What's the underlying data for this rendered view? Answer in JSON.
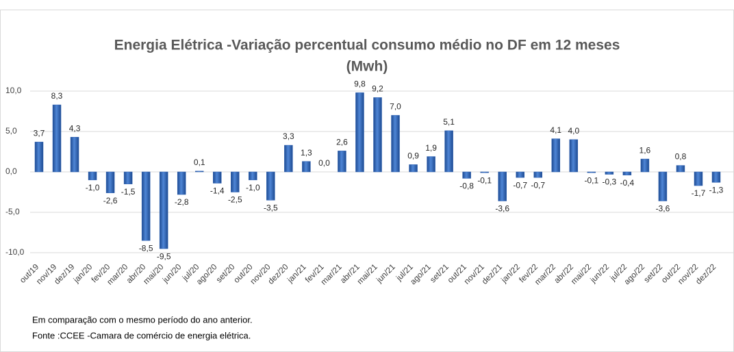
{
  "chart_data": {
    "type": "bar",
    "title": [
      "Energia Elétrica -Variação percentual consumo médio  no DF em 12 meses",
      "(Mwh)"
    ],
    "notes": [
      "Em comparação com o mesmo período do ano anterior.",
      "Fonte :CCEE -Camara de comércio de energia elétrica."
    ],
    "categories": [
      "out/19",
      "nov/19",
      "dez/19",
      "jan/20",
      "fev/20",
      "mar/20",
      "abr/20",
      "mai/20",
      "jun/20",
      "jul/20",
      "ago/20",
      "set/20",
      "out/20",
      "nov/20",
      "dez/20",
      "jan/21",
      "fev/21",
      "mar/21",
      "abr/21",
      "mai/21",
      "jun/21",
      "jul/21",
      "ago/21",
      "set/21",
      "out/21",
      "nov/21",
      "dez/21",
      "jan/22",
      "fev/22",
      "mar/22",
      "abr/22",
      "mai/22",
      "jun/22",
      "jul/22",
      "ago/22",
      "set/22",
      "out/22",
      "nov/22",
      "dez/22"
    ],
    "values": [
      3.7,
      8.3,
      4.3,
      -1.0,
      -2.6,
      -1.5,
      -8.5,
      -9.5,
      -2.8,
      0.1,
      -1.4,
      -2.5,
      -1.0,
      -3.5,
      3.3,
      1.3,
      0.0,
      2.6,
      9.8,
      9.2,
      7.0,
      0.9,
      1.9,
      5.1,
      -0.8,
      -0.1,
      -3.6,
      -0.7,
      -0.7,
      4.1,
      4.0,
      -0.1,
      -0.3,
      -0.4,
      1.6,
      -3.6,
      0.8,
      -1.7,
      -1.3
    ],
    "value_labels": [
      "3,7",
      "8,3",
      "4,3",
      "-1,0",
      "-2,6",
      "-1,5",
      "-8,5",
      "-9,5",
      "-2,8",
      "0,1",
      "-1,4",
      "-2,5",
      "-1,0",
      "-3,5",
      "3,3",
      "1,3",
      "0,0",
      "2,6",
      "9,8",
      "9,2",
      "7,0",
      "0,9",
      "1,9",
      "5,1",
      "-0,8",
      "-0,1",
      "-3,6",
      "-0,7",
      "-0,7",
      "4,1",
      "4,0",
      "-0,1",
      "-0,3",
      "-0,4",
      "1,6",
      "-3,6",
      "0,8",
      "-1,7",
      "-1,3"
    ],
    "color": "#2f62b3",
    "ylim": [
      -10,
      10
    ],
    "yticks": [
      {
        "value": -10,
        "label": "-10,0"
      },
      {
        "value": -5,
        "label": "-5,0"
      },
      {
        "value": 0,
        "label": "0,0"
      },
      {
        "value": 5,
        "label": "5,0"
      },
      {
        "value": 10,
        "label": "10,0"
      }
    ],
    "grid": true
  }
}
